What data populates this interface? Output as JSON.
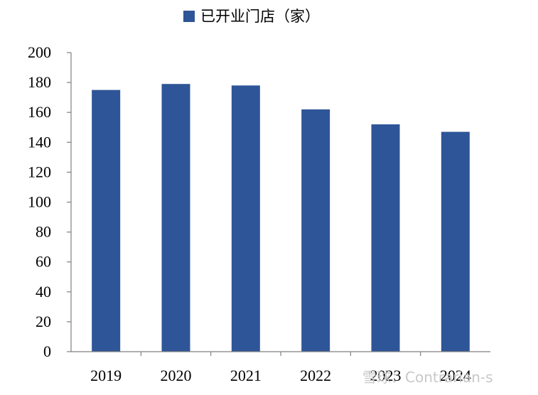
{
  "chart_data": {
    "type": "bar",
    "categories": [
      "2019",
      "2020",
      "2021",
      "2022",
      "2023",
      "2024"
    ],
    "series": [
      {
        "name": "已开业门店（家）",
        "values": [
          175,
          179,
          178,
          162,
          152,
          147
        ]
      }
    ],
    "ylim": [
      0,
      200
    ],
    "yticks": [
      0,
      20,
      40,
      60,
      80,
      100,
      120,
      140,
      160,
      180,
      200
    ],
    "legend_position": "top-center",
    "grid": false,
    "colors": {
      "bar": "#2E5597",
      "axis": "#808080"
    },
    "watermark": "雪球：Contrarian-s"
  }
}
